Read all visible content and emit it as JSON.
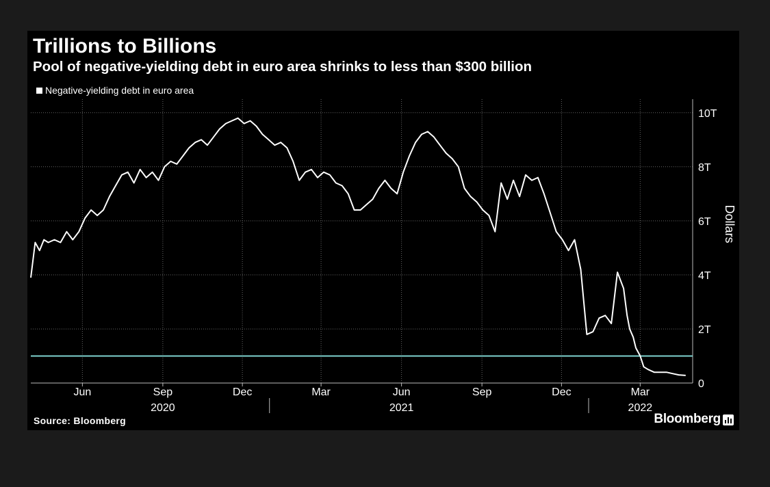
{
  "title": "Trillions to Billions",
  "subtitle": "Pool of negative-yielding debt in euro area shrinks to less than $300 billion",
  "source": "Source: Bloomberg",
  "brand": "Bloomberg",
  "colors": {
    "background": "#000000",
    "line": "#ffffff",
    "reference_line": "#7fd3d0",
    "grid": "#666666",
    "text": "#ffffff"
  },
  "chart_data": {
    "type": "line",
    "title": "Trillions to Billions",
    "subtitle": "Pool of negative-yielding debt in euro area shrinks to less than $300 billion",
    "ylabel": "Dollars",
    "ylim": [
      0,
      10.5
    ],
    "yticks": [
      0,
      2,
      4,
      6,
      8,
      10
    ],
    "ytick_labels": [
      "0",
      "2T",
      "4T",
      "6T",
      "8T",
      "10T"
    ],
    "xlim": [
      "2020-04-03",
      "2022-04-30"
    ],
    "xticks": [
      {
        "date": "2020-06-01",
        "label": "Jun"
      },
      {
        "date": "2020-09-01",
        "label": "Sep"
      },
      {
        "date": "2020-12-01",
        "label": "Dec"
      },
      {
        "date": "2021-03-01",
        "label": "Mar"
      },
      {
        "date": "2021-06-01",
        "label": "Jun"
      },
      {
        "date": "2021-09-01",
        "label": "Sep"
      },
      {
        "date": "2021-12-01",
        "label": "Dec"
      },
      {
        "date": "2022-03-01",
        "label": "Mar"
      }
    ],
    "year_labels": [
      {
        "date": "2020-09-01",
        "label": "2020"
      },
      {
        "date": "2021-06-01",
        "label": "2021"
      },
      {
        "date": "2022-03-01",
        "label": "2022"
      }
    ],
    "year_dividers": [
      "2021-01-01",
      "2022-01-01"
    ],
    "grid": true,
    "legend_position": "top-left",
    "reference_line": {
      "y": 1.0
    },
    "series": [
      {
        "name": "Negative-yielding debt in euro area",
        "x": [
          "2020-04-03",
          "2020-04-08",
          "2020-04-13",
          "2020-04-18",
          "2020-04-23",
          "2020-04-30",
          "2020-05-07",
          "2020-05-14",
          "2020-05-21",
          "2020-05-28",
          "2020-06-04",
          "2020-06-11",
          "2020-06-18",
          "2020-06-25",
          "2020-07-02",
          "2020-07-09",
          "2020-07-16",
          "2020-07-23",
          "2020-07-30",
          "2020-08-06",
          "2020-08-13",
          "2020-08-20",
          "2020-08-27",
          "2020-09-03",
          "2020-09-10",
          "2020-09-17",
          "2020-09-24",
          "2020-10-01",
          "2020-10-08",
          "2020-10-15",
          "2020-10-22",
          "2020-10-29",
          "2020-11-05",
          "2020-11-12",
          "2020-11-19",
          "2020-11-26",
          "2020-12-03",
          "2020-12-10",
          "2020-12-17",
          "2020-12-24",
          "2020-12-31",
          "2021-01-07",
          "2021-01-14",
          "2021-01-21",
          "2021-01-28",
          "2021-02-04",
          "2021-02-11",
          "2021-02-18",
          "2021-02-25",
          "2021-03-04",
          "2021-03-11",
          "2021-03-18",
          "2021-03-25",
          "2021-04-01",
          "2021-04-08",
          "2021-04-15",
          "2021-04-22",
          "2021-04-29",
          "2021-05-06",
          "2021-05-13",
          "2021-05-20",
          "2021-05-27",
          "2021-06-03",
          "2021-06-10",
          "2021-06-17",
          "2021-06-24",
          "2021-07-01",
          "2021-07-08",
          "2021-07-15",
          "2021-07-22",
          "2021-07-29",
          "2021-08-05",
          "2021-08-12",
          "2021-08-19",
          "2021-08-26",
          "2021-09-02",
          "2021-09-09",
          "2021-09-16",
          "2021-09-23",
          "2021-09-30",
          "2021-10-07",
          "2021-10-14",
          "2021-10-21",
          "2021-10-28",
          "2021-11-04",
          "2021-11-11",
          "2021-11-18",
          "2021-11-25",
          "2021-12-02",
          "2021-12-09",
          "2021-12-16",
          "2021-12-23",
          "2021-12-30",
          "2022-01-06",
          "2022-01-13",
          "2022-01-20",
          "2022-01-27",
          "2022-02-03",
          "2022-02-10",
          "2022-02-14",
          "2022-02-17",
          "2022-02-21",
          "2022-02-24",
          "2022-03-01",
          "2022-03-05",
          "2022-03-10",
          "2022-03-17",
          "2022-03-24",
          "2022-03-31",
          "2022-04-07",
          "2022-04-14",
          "2022-04-22"
        ],
        "values": [
          3.9,
          5.2,
          4.9,
          5.3,
          5.2,
          5.3,
          5.2,
          5.6,
          5.3,
          5.6,
          6.1,
          6.4,
          6.2,
          6.4,
          6.9,
          7.3,
          7.7,
          7.8,
          7.4,
          7.9,
          7.6,
          7.8,
          7.5,
          8.0,
          8.2,
          8.1,
          8.4,
          8.7,
          8.9,
          9.0,
          8.8,
          9.1,
          9.4,
          9.6,
          9.7,
          9.8,
          9.6,
          9.7,
          9.5,
          9.2,
          9.0,
          8.8,
          8.9,
          8.7,
          8.2,
          7.5,
          7.8,
          7.9,
          7.6,
          7.8,
          7.7,
          7.4,
          7.3,
          7.0,
          6.4,
          6.4,
          6.6,
          6.8,
          7.2,
          7.5,
          7.2,
          7.0,
          7.8,
          8.4,
          8.9,
          9.2,
          9.3,
          9.1,
          8.8,
          8.5,
          8.3,
          8.0,
          7.2,
          6.9,
          6.7,
          6.4,
          6.2,
          5.6,
          7.4,
          6.8,
          7.5,
          6.9,
          7.7,
          7.5,
          7.6,
          7.0,
          6.3,
          5.6,
          5.3,
          4.9,
          5.3,
          4.2,
          1.8,
          1.9,
          2.4,
          2.5,
          2.2,
          4.1,
          3.5,
          2.5,
          2.0,
          1.7,
          1.3,
          1.0,
          0.6,
          0.5,
          0.4,
          0.4,
          0.4,
          0.35,
          0.3,
          0.28
        ]
      }
    ]
  }
}
